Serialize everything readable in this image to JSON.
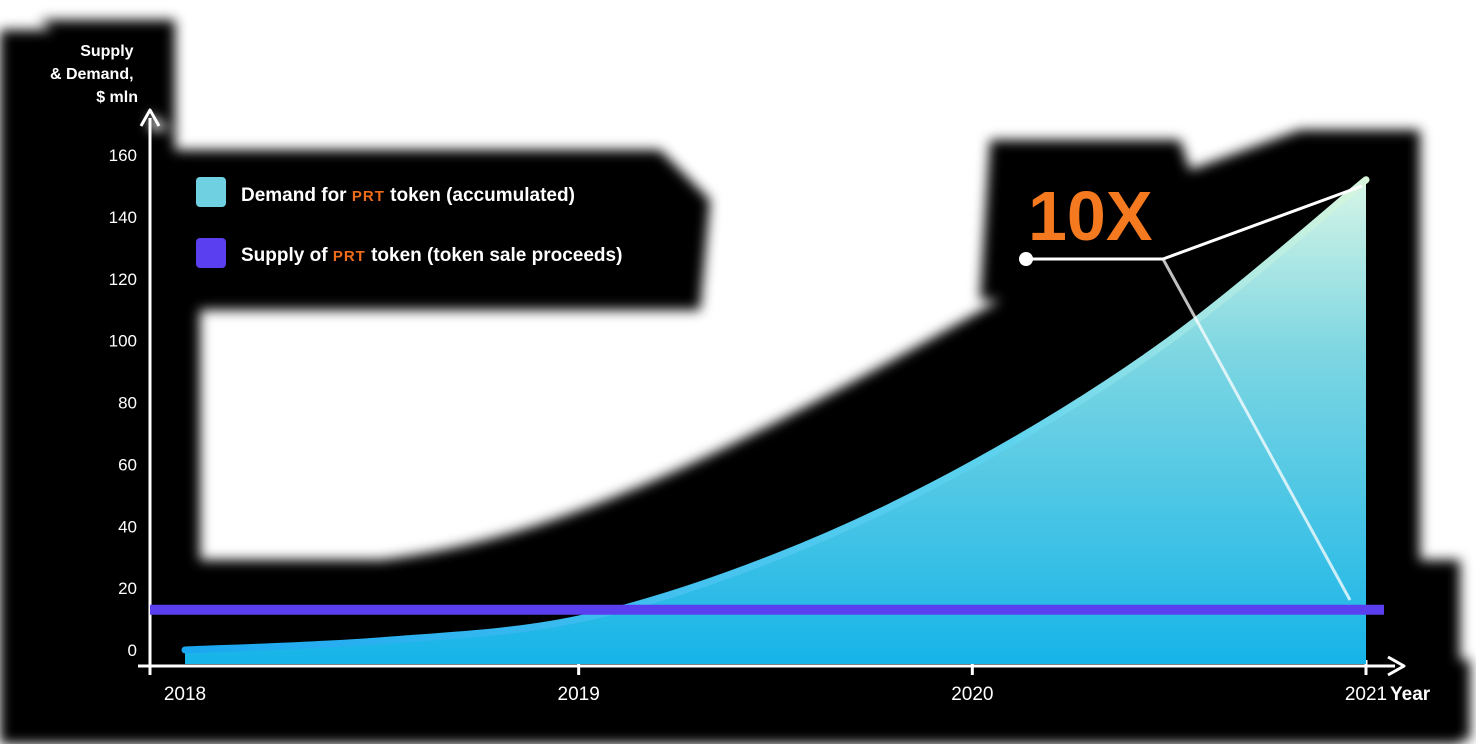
{
  "chart_data": {
    "type": "area",
    "ylabel": [
      "Supply",
      "& Demand,",
      "$ mln"
    ],
    "xlabel": "Year",
    "y_ticks": [
      "0",
      "20",
      "40",
      "60",
      "80",
      "100",
      "120",
      "140",
      "160"
    ],
    "x_ticks": [
      "2018",
      "2019",
      "2020",
      "2021"
    ],
    "ylim": [
      0,
      160
    ],
    "xlim": [
      2018,
      2021
    ],
    "grid": false,
    "legend_position": "top-left",
    "series": [
      {
        "name_parts": [
          "Demand for ",
          "PRT",
          " token (accumulated)"
        ],
        "kind": "area",
        "x": [
          2018,
          2018.5,
          2019,
          2019.5,
          2020,
          2020.5,
          2021
        ],
        "y": [
          0,
          3,
          10,
          30,
          60,
          100,
          152
        ]
      },
      {
        "name_parts": [
          "Supply of ",
          "PRT",
          " token (token sale proceeds)"
        ],
        "kind": "line",
        "x": [
          2018,
          2021
        ],
        "y": [
          13,
          13
        ]
      }
    ],
    "annotation": {
      "text": "10X",
      "x": 2021,
      "y": 152
    }
  },
  "colors": {
    "demand_top": "#d6f5e6",
    "demand_mid": "#7fd7e2",
    "demand_bottom": "#16b4e8",
    "supply": "#5a3ff0",
    "annotation": "#f5791e",
    "axis": "#ffffff",
    "backdrop": "#000000"
  }
}
